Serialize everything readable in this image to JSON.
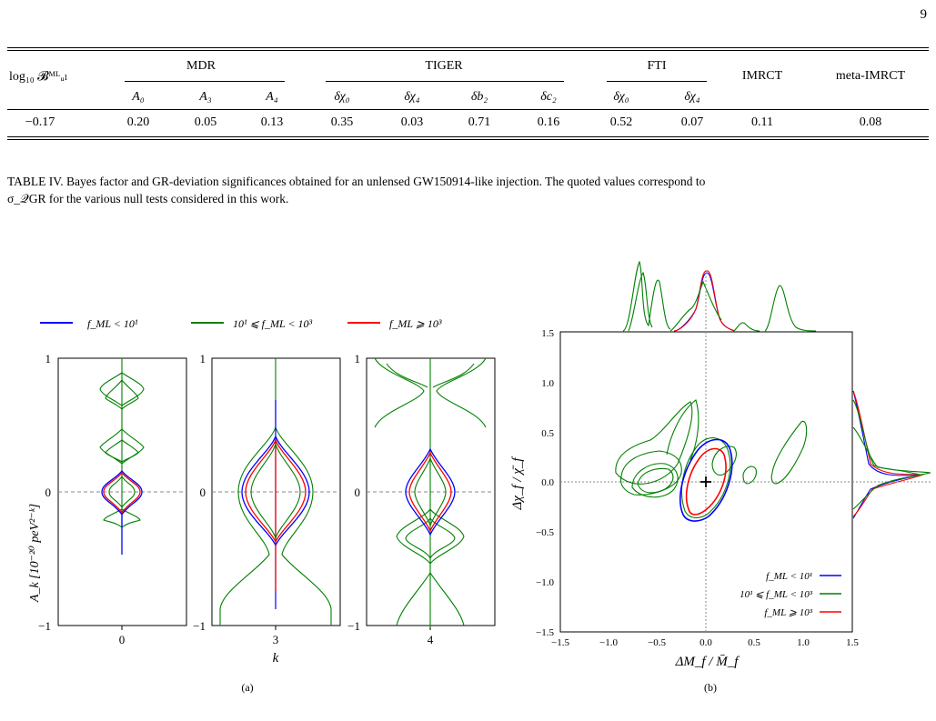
{
  "page_number": "9",
  "table": {
    "row_header": "log₁₀ 𝓑ᴹᴸᵤₗ",
    "groups": [
      {
        "name": "MDR",
        "cols": [
          "A₀",
          "A₃",
          "A₄"
        ]
      },
      {
        "name": "TIGER",
        "cols": [
          "δχ₀",
          "δχ₄",
          "δb₂",
          "δc₂"
        ]
      },
      {
        "name": "FTI",
        "cols": [
          "δχ₀",
          "δχ₄"
        ]
      }
    ],
    "single_cols": [
      "IMRCT",
      "meta-IMRCT"
    ],
    "row_values": [
      "−0.17",
      "0.20",
      "0.05",
      "0.13",
      "0.35",
      "0.03",
      "0.71",
      "0.16",
      "0.52",
      "0.07",
      "0.11",
      "0.08"
    ]
  },
  "caption": {
    "line1": "TABLE IV. Bayes factor and GR-deviation significances obtained for an unlensed GW150914-like injection. The quoted values correspond to",
    "line2": "σ_𝒬GR for the various null tests considered in this work."
  },
  "fig_a": {
    "legend": [
      "f_ML < 10¹",
      "10¹ ⩽ f_ML < 10³",
      "f_ML ⩾ 10³"
    ],
    "ylabel": "A_k [10⁻²⁰ peV²⁻ᵏ]",
    "xlabel": "k",
    "panel_ticks": [
      "0",
      "3",
      "4"
    ],
    "yticks": [
      "1",
      "0",
      "−1"
    ],
    "sublabel": "(a)"
  },
  "fig_b": {
    "xlabel": "ΔM_f / M̄_f",
    "ylabel": "Δχ_f / χ̄_f",
    "xticks": [
      "−1.5",
      "−1.0",
      "−0.5",
      "0.0",
      "0.5",
      "1.0",
      "1.5"
    ],
    "yticks": [
      "1.5",
      "1.0",
      "0.5",
      "0.0",
      "−0.5",
      "−1.0",
      "−1.5"
    ],
    "legend": [
      "f_ML < 10¹",
      "10¹ ⩽ f_ML < 10³",
      "f_ML ⩾ 10³"
    ],
    "sublabel": "(b)"
  },
  "colors": {
    "blue": "#0000ff",
    "green": "#008000",
    "red": "#ff0000",
    "grid": "#888888"
  },
  "chart_data": [
    {
      "type": "violin",
      "xlabel": "k",
      "ylabel": "A_k [10⁻²⁰ peV²⁻ᵏ]",
      "categories": [
        "0",
        "3",
        "4"
      ],
      "ylim": [
        -1,
        1
      ],
      "series": [
        {
          "name": "f_ML < 10¹"
        },
        {
          "name": "10¹ ⩽ f_ML < 10³"
        },
        {
          "name": "f_ML ⩾ 10³"
        }
      ]
    },
    {
      "type": "contour",
      "xlabel": "ΔM_f / M̄_f",
      "ylabel": "Δχ_f / χ̄_f",
      "xlim": [
        -1.5,
        1.5
      ],
      "ylim": [
        -1.5,
        1.5
      ],
      "injection_marker": [
        0.0,
        0.0
      ],
      "series": [
        {
          "name": "f_ML < 10¹",
          "color": "#0000ff",
          "center": [
            0.02,
            0.05
          ]
        },
        {
          "name": "10¹ ⩽ f_ML < 10³",
          "color": "#008000",
          "center": [
            -0.6,
            0.05
          ]
        },
        {
          "name": "f_ML ⩾ 10³",
          "color": "#ff0000",
          "center": [
            0.05,
            0.05
          ]
        }
      ]
    }
  ]
}
